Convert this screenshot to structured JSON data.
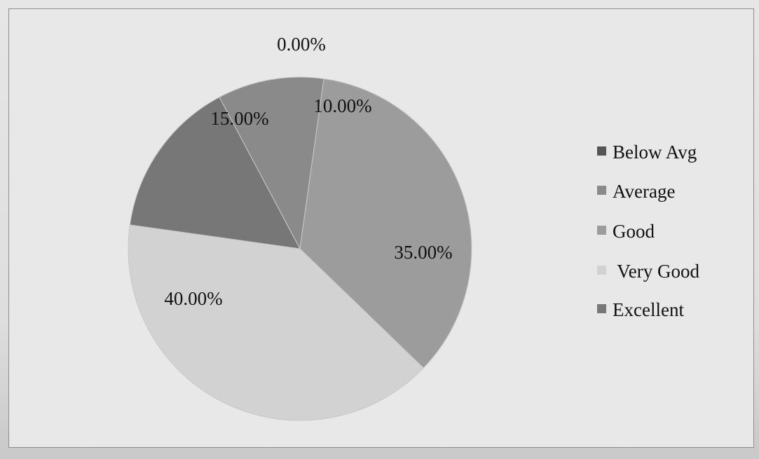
{
  "chart_data": {
    "type": "pie",
    "title": "",
    "categories": [
      "Below Avg",
      "Average",
      "Good",
      "Very Good",
      "Excellent"
    ],
    "values": [
      0.0,
      10.0,
      35.0,
      40.0,
      15.0
    ],
    "data_labels": [
      "0.00%",
      "10.00%",
      "35.00%",
      "40.00%",
      "15.00%"
    ],
    "colors": [
      "#555555",
      "#8a8a8a",
      "#9c9c9c",
      "#d2d2d2",
      "#777777"
    ],
    "legend": {
      "placement": "right",
      "entries": [
        "Below Avg",
        "Average",
        "Good",
        " Very Good",
        "Excellent"
      ]
    }
  }
}
